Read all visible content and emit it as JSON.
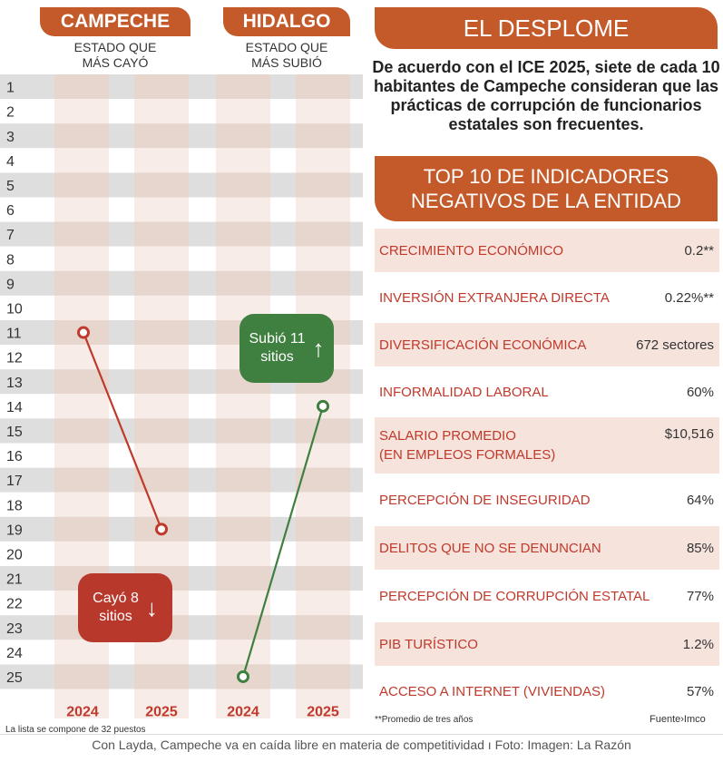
{
  "left_panel": {
    "campeche": {
      "name": "CAMPECHE",
      "subtitle_1": "ESTADO QUE",
      "subtitle_2": "MÁS CAYÓ"
    },
    "hidalgo": {
      "name": "HIDALGO",
      "subtitle_1": "ESTADO QUE",
      "subtitle_2": "MÁS SUBIÓ"
    },
    "badge_down": {
      "line1": "Cayó 8",
      "line2": "sitios",
      "arrow": "↓",
      "color": "#b8382b"
    },
    "badge_up": {
      "line1": "Subió 11",
      "line2": "sitios",
      "arrow": "↑",
      "color": "#3f7f3f"
    },
    "list_note": "La lista se compone de 32 puestos"
  },
  "chart_data": {
    "type": "line",
    "ranks": [
      "1",
      "2",
      "3",
      "4",
      "5",
      "6",
      "7",
      "8",
      "9",
      "10",
      "11",
      "12",
      "13",
      "14",
      "15",
      "16",
      "17",
      "18",
      "19",
      "20",
      "21",
      "22",
      "23",
      "24",
      "25"
    ],
    "x": [
      "2024",
      "2025"
    ],
    "series": [
      {
        "name": "CAMPECHE",
        "values": [
          11,
          19
        ],
        "color": "#c0392b"
      },
      {
        "name": "HIDALGO",
        "values": [
          25,
          14
        ],
        "color": "#3f7f3f"
      }
    ],
    "ylim": [
      1,
      25
    ],
    "y_reversed": true
  },
  "right_panel": {
    "header": "EL DESPLOME",
    "intro": "De acuerdo con el ICE 2025, siete de cada 10 habitantes de Campeche consideran que las prácticas de corrupción de funcionarios estatales son frecuentes.",
    "top10_line1": "TOP 10 DE INDICADORES",
    "top10_line2": "NEGATIVOS DE LA ENTIDAD",
    "indicators": [
      {
        "name": "CRECIMIENTO ECONÓMICO",
        "value": "0.2**"
      },
      {
        "name": "INVERSIÓN EXTRANJERA DIRECTA",
        "value": "0.22%**"
      },
      {
        "name": "DIVERSIFICACIÓN ECONÓMICA",
        "value": "672 sectores"
      },
      {
        "name": "INFORMALIDAD LABORAL",
        "value": "60%"
      },
      {
        "name": "SALARIO PROMEDIO",
        "name2": "(EN EMPLEOS FORMALES)",
        "value": "$10,516"
      },
      {
        "name": "PERCEPCIÓN DE INSEGURIDAD",
        "value": "64%"
      },
      {
        "name": "DELITOS QUE NO SE DENUNCIAN",
        "value": "85%"
      },
      {
        "name": "PERCEPCIÓN DE CORRUPCIÓN ESTATAL",
        "value": "77%"
      },
      {
        "name": "PIB TURÍSTICO",
        "value": "1.2%"
      },
      {
        "name": "ACCESO A INTERNET (VIVIENDAS)",
        "value": "57%"
      }
    ],
    "footnote": "**Promedio de tres años",
    "source": "Fuente›Imco"
  },
  "caption": "Con Layda, Campeche va en caída libre en materia de competitividad ı Foto: Imagen: La Razón"
}
